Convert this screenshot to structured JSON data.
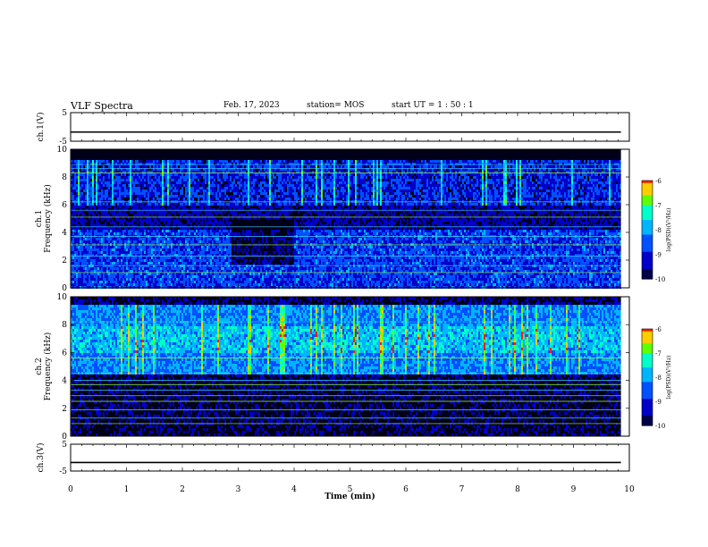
{
  "header": {
    "title": "VLF Spectra",
    "date": "Feb. 17, 2023",
    "station": "station= MOS",
    "start": "start  UT =   1 : 50 : 1"
  },
  "chart_data": [
    {
      "type": "line",
      "panel": "ch1-voltage",
      "ylabel": "ch.1(V)",
      "ylim": [
        -5,
        5
      ],
      "yticks": [
        "5",
        "-5"
      ],
      "series": [
        {
          "x": [
            0,
            9.85
          ],
          "y": [
            -1.8,
            -1.8
          ]
        }
      ]
    },
    {
      "type": "heatmap",
      "panel": "ch1-spectrogram",
      "ylabel": "ch.1\nFrequency (kHz)",
      "ylim": [
        0,
        10
      ],
      "yticks": [
        "0",
        "2",
        "4",
        "6",
        "8",
        "10"
      ],
      "colorbar": {
        "label": "log(PSD)(V²/Hz)",
        "range": [
          -10,
          -6
        ],
        "ticks": [
          "-6",
          "-7",
          "-8",
          "-9",
          "-10"
        ]
      }
    },
    {
      "type": "heatmap",
      "panel": "ch2-spectrogram",
      "ylabel": "ch.2\nFrequency (kHz)",
      "ylim": [
        0,
        10
      ],
      "yticks": [
        "0",
        "2",
        "4",
        "6",
        "8",
        "10"
      ],
      "colorbar": {
        "label": "log(PSD)(V²/Hz)",
        "range": [
          -10,
          -6
        ],
        "ticks": [
          "-6",
          "-7",
          "-8",
          "-9",
          "-10"
        ]
      }
    },
    {
      "type": "line",
      "panel": "ch3-voltage",
      "ylabel": "ch.3(V)",
      "ylim": [
        -5,
        5
      ],
      "yticks": [
        "5",
        "-5"
      ],
      "series": [
        {
          "x": [
            0,
            9.85
          ],
          "y": [
            -1.8,
            -1.8
          ]
        }
      ]
    }
  ],
  "xaxis": {
    "label": "Time  (min)",
    "range": [
      0,
      10
    ],
    "ticks": [
      "0",
      "1",
      "2",
      "3",
      "4",
      "5",
      "6",
      "7",
      "8",
      "9",
      "10"
    ]
  },
  "colors": {
    "spectrum": [
      "#00007a",
      "#0000ff",
      "#0090ff",
      "#00ffff",
      "#00ff40",
      "#ffff00",
      "#ff8000",
      "#ff0000",
      "#ffffff"
    ]
  }
}
